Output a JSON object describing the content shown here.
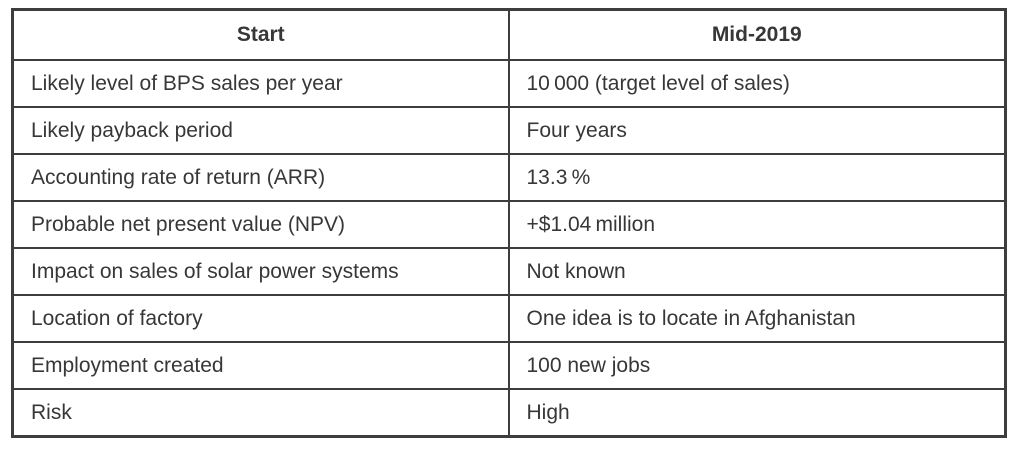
{
  "table": {
    "columns": [
      {
        "header": "Start"
      },
      {
        "header": "Mid-2019"
      }
    ],
    "rows": [
      {
        "label": "Likely level of BPS sales per year",
        "value": "10 000 (target level of sales)"
      },
      {
        "label": "Likely payback period",
        "value": "Four years"
      },
      {
        "label": "Accounting rate of return (ARR)",
        "value": "13.3 %"
      },
      {
        "label": "Probable net present value (NPV)",
        "value": "+$1.04 million"
      },
      {
        "label": "Impact on sales of solar power systems",
        "value": "Not known"
      },
      {
        "label": "Location of factory",
        "value": "One idea is to locate in Afghanistan"
      },
      {
        "label": "Employment created",
        "value": "100 new jobs"
      },
      {
        "label": "Risk",
        "value": "High"
      }
    ],
    "colors": {
      "border": "#3d3d3d",
      "text": "#373737",
      "background": "#ffffff"
    }
  }
}
